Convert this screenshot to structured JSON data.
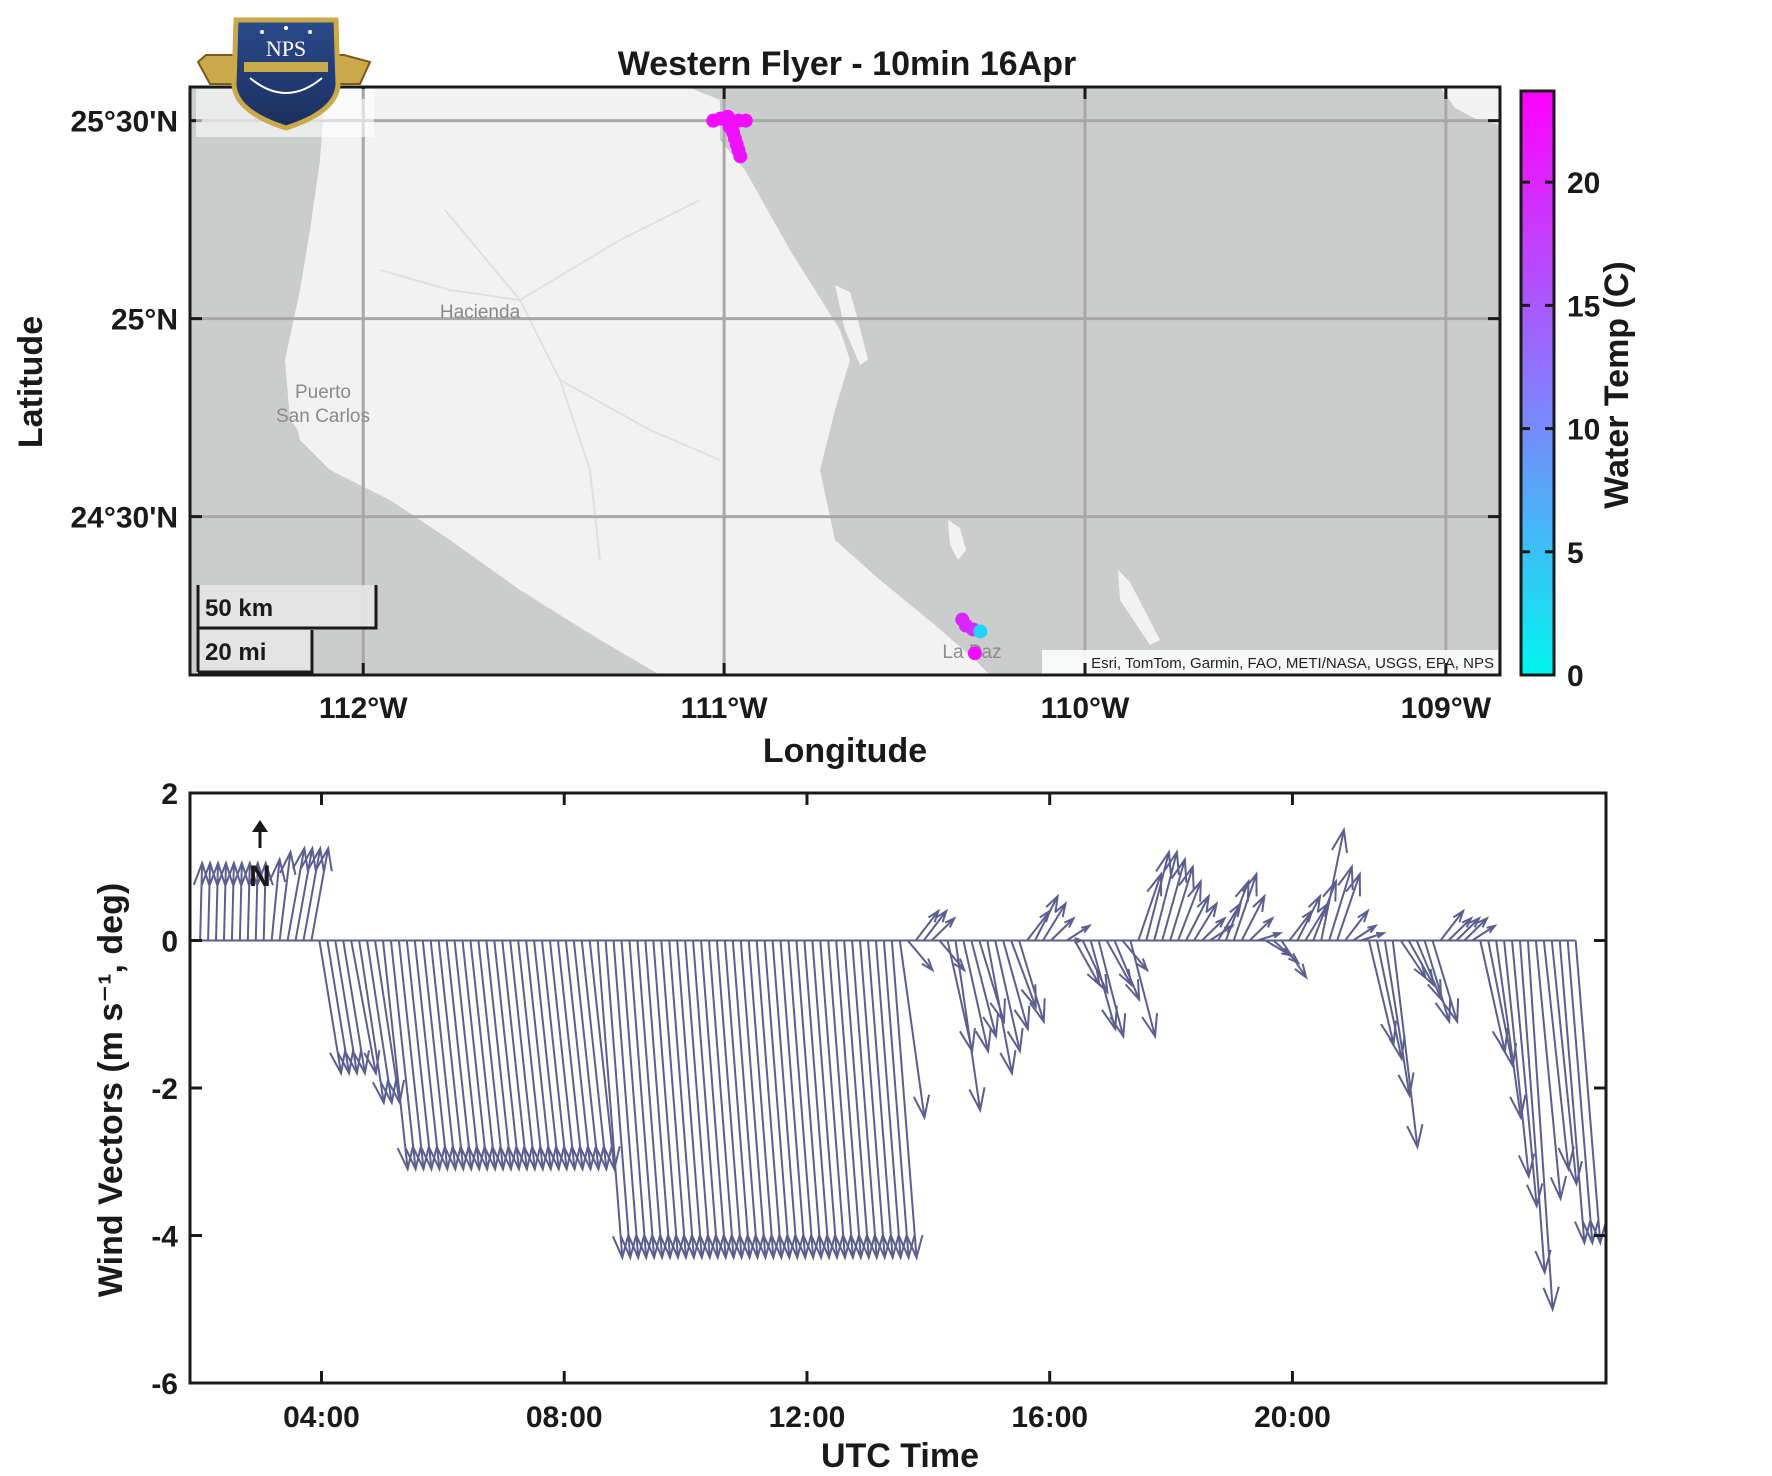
{
  "chart_data": [
    {
      "type": "scatter",
      "title": "Western Flyer - 10min 16Apr",
      "xlabel": "Longitude",
      "ylabel": "Latitude",
      "x_ticks": [
        "112°W",
        "111°W",
        "110°W",
        "109°W"
      ],
      "y_ticks": [
        "25°30'N",
        "25°N",
        "24°30'N"
      ],
      "xlim": [
        -112.48,
        -108.85
      ],
      "ylim": [
        24.1,
        25.585
      ],
      "grid": true,
      "colorbar": {
        "label": "Water Temp (C)",
        "ticks": [
          "0",
          "5",
          "10",
          "15",
          "20"
        ],
        "range": [
          0,
          23.7
        ],
        "colors": [
          "#00f5f0",
          "#8a78ff",
          "#ff00ff"
        ]
      },
      "scale_bar": {
        "km": "50 km",
        "mi": "20 mi"
      },
      "place_labels": [
        "Hacienda",
        "Puerto",
        "San Carlos",
        "La Paz"
      ],
      "attribution": "Esri, TomTom, Garmin, FAO, METI/NASA, USGS, EPA, NPS",
      "points": [
        {
          "lon": -111.03,
          "lat": 25.5,
          "temp": 22.4
        },
        {
          "lon": -111.01,
          "lat": 25.505,
          "temp": 22.5
        },
        {
          "lon": -110.99,
          "lat": 25.51,
          "temp": 22.5
        },
        {
          "lon": -110.98,
          "lat": 25.5,
          "temp": 22.4
        },
        {
          "lon": -110.96,
          "lat": 25.5,
          "temp": 22.4
        },
        {
          "lon": -110.94,
          "lat": 25.5,
          "temp": 22.3
        },
        {
          "lon": -110.985,
          "lat": 25.485,
          "temp": 22.3
        },
        {
          "lon": -110.975,
          "lat": 25.47,
          "temp": 22.2
        },
        {
          "lon": -110.97,
          "lat": 25.455,
          "temp": 22.1
        },
        {
          "lon": -110.965,
          "lat": 25.44,
          "temp": 22.0
        },
        {
          "lon": -110.96,
          "lat": 25.425,
          "temp": 21.9
        },
        {
          "lon": -110.955,
          "lat": 25.41,
          "temp": 21.8
        },
        {
          "lon": -110.34,
          "lat": 24.24,
          "temp": 20.5
        },
        {
          "lon": -110.33,
          "lat": 24.225,
          "temp": 20.0
        },
        {
          "lon": -110.31,
          "lat": 24.215,
          "temp": 19.5
        },
        {
          "lon": -110.29,
          "lat": 24.21,
          "temp": 3.0
        },
        {
          "lon": -110.305,
          "lat": 24.155,
          "temp": 22.3
        }
      ]
    },
    {
      "type": "quiver",
      "xlabel": "UTC Time",
      "ylabel": "Wind Vectors (m s⁻¹, deg)",
      "x_ticks": [
        "04:00",
        "08:00",
        "12:00",
        "16:00",
        "20:00"
      ],
      "y_ticks": [
        "2",
        "0",
        "-2",
        "-4",
        "-6"
      ],
      "xlim": [
        "01:50",
        "25:10"
      ],
      "ylim": [
        -6,
        2
      ],
      "north_indicator": "N",
      "series": [
        {
          "color": "#5b5e8f",
          "u": [
            0,
            0,
            0,
            0,
            0,
            0,
            0,
            0,
            0,
            0.02,
            0.03,
            0.05,
            0.05,
            0.05,
            0.05,
            0.06,
            0.06,
            0.06,
            0.06,
            0.07,
            0.07,
            0.07,
            0.07,
            0.07,
            0.07,
            0.07,
            0.07,
            0.07,
            0.07,
            0.07,
            0.07,
            0.07,
            0.07,
            0.07,
            0.07,
            0.07,
            0.07,
            0.07,
            0.07,
            0.07,
            0.07,
            0.07,
            0.07,
            0.07,
            0.07,
            0.07,
            0.07,
            0.07,
            0.07,
            0.07,
            0.07,
            0.07,
            0.07,
            0.07,
            0.07,
            0.07,
            0.07,
            0.07,
            0.07,
            0.07,
            0.07,
            0.07,
            0.07,
            0.07,
            0.07,
            0.07,
            0.07,
            0.07,
            0.07,
            0.07,
            0.07,
            0.07,
            0.07,
            0.07,
            0.07,
            0.07,
            0.07,
            0.07,
            0.07,
            0.07,
            0.07,
            0.07,
            0.07,
            0.07,
            0.07,
            0.07,
            0.07,
            0.07,
            0.07,
            0.07,
            0.07,
            0.07,
            0.07,
            0.07,
            0.07,
            0.07,
            0.07,
            0.07,
            0.07,
            0.07,
            0.07,
            0.07,
            0.07,
            0.07,
            0.07,
            0.07,
            0.07,
            0.07,
            0.07,
            0.07,
            0.07,
            0.07,
            0.07,
            0.07,
            0.07,
            0.07,
            0.07,
            0.07,
            0.07,
            0.07,
            0.07,
            0.07,
            0.07,
            0.07,
            0.07,
            0.07,
            0.07,
            0.07,
            0.07,
            0.07,
            0.07,
            0.07,
            0.07,
            0.07,
            0.07,
            0.07,
            0.07,
            0.07,
            0.07,
            0.07,
            0.07,
            0.07,
            0.07,
            0.07,
            0.07,
            0.07,
            0.07,
            0.07,
            0.07,
            0.07,
            0.07,
            0.07,
            0.07,
            0.07,
            0.07,
            0.07,
            0.07,
            0.07,
            0.07,
            0.07,
            0.07,
            0.07,
            0.07,
            0.07,
            0.07,
            0.07,
            0.07,
            0.07,
            0.07,
            0.07,
            0.07,
            0.07,
            0.07,
            0.07,
            0.07,
            0.07,
            0.07,
            0.07,
            0.07
          ],
          "v": [
            1.05,
            1.05,
            1.05,
            1.05,
            1.05,
            1.05,
            1.05,
            1.05,
            1.05,
            1.1,
            1.2,
            1.25,
            1.25,
            1.25,
            1.25,
            -1.8,
            -1.8,
            -1.8,
            -1.8,
            -1.8,
            -2.2,
            -2.2,
            -2.2,
            -3.1,
            -3.1,
            -3.1,
            -3.1,
            -3.1,
            -3.1,
            -3.1,
            -3.1,
            -3.1,
            -3.1,
            -3.1,
            -3.1,
            -3.1,
            -3.1,
            -3.1,
            -3.1,
            -3.1,
            -3.1,
            -3.1,
            -3.1,
            -3.1,
            -3.1,
            -3.1,
            -3.1,
            -3.1,
            -3.1,
            -3.1,
            -4.3,
            -4.3,
            -4.3,
            -4.3,
            -4.3,
            -4.3,
            -4.3,
            -4.3,
            -4.3,
            -4.3,
            -4.3,
            -4.3,
            -4.3,
            -4.3,
            -4.3,
            -4.3,
            -4.3,
            -4.3,
            -4.3,
            -4.3,
            -4.3,
            -4.3,
            -4.3,
            -4.3,
            -4.3,
            -4.3,
            -4.3,
            -4.3,
            -4.3,
            -4.3,
            -4.3,
            -4.3,
            -4.3,
            -4.3,
            -4.3,
            -4.3,
            -4.3,
            -4.3,
            -2.4,
            -0.4,
            0.4,
            0.4,
            0.3,
            -0.4,
            -1.5,
            -2.3,
            -1.5,
            -1.3,
            -1.1,
            -1.8,
            -1.5,
            -1.2,
            -0.9,
            -1.1,
            0.4,
            0.6,
            0.5,
            0.3,
            0.0,
            0.2,
            -0.6,
            -0.7,
            -1.2,
            -1.3,
            -0.6,
            -0.8,
            -0.4,
            -1.3,
            0.9,
            1.2,
            1.2,
            1.1,
            1.0,
            0.8,
            0.6,
            0.5,
            0.3,
            0.2,
            0.5,
            0.8,
            0.9,
            0.6,
            0.3,
            0.1,
            -0.2,
            -0.3,
            -0.5,
            0.4,
            0.6,
            0.5,
            0.8,
            1.5,
            1.0,
            0.9,
            0.4,
            0.2,
            0.1,
            -1.4,
            -1.6,
            -2.1,
            -2.8,
            -0.5,
            -0.6,
            -0.8,
            -1.1,
            -1.1,
            0.4,
            0.3,
            0.3,
            0.3,
            0.2,
            -1.5,
            -1.7,
            -2.4,
            -3.2,
            -3.6,
            -4.5,
            -5.0,
            -3.5,
            -3.1,
            -3.3,
            -4.1,
            -4.1,
            -4.1
          ]
        }
      ]
    }
  ]
}
